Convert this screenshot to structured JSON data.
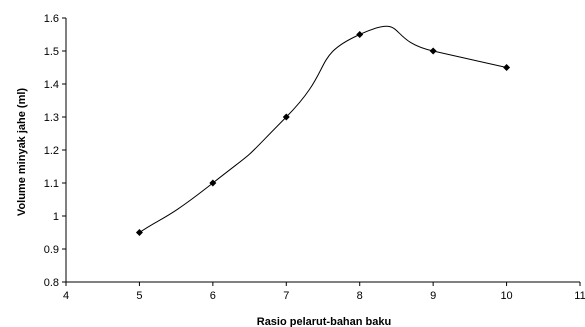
{
  "chart_data": {
    "type": "scatter",
    "title": "",
    "xlabel": "Rasio pelarut-bahan baku",
    "ylabel": "Volume minyak jahe (ml)",
    "xlim": [
      4,
      11
    ],
    "ylim": [
      0.8,
      1.6
    ],
    "xticks": [
      4,
      5,
      6,
      7,
      8,
      9,
      10,
      11
    ],
    "yticks": [
      0.8,
      0.9,
      1.0,
      1.1,
      1.2,
      1.3,
      1.4,
      1.5,
      1.6
    ],
    "xtick_labels": [
      "4",
      "5",
      "6",
      "7",
      "8",
      "9",
      "10",
      "11"
    ],
    "ytick_labels": [
      "0.8",
      "0.9",
      "1",
      "1.1",
      "1.2",
      "1.3",
      "1.4",
      "1.5",
      "1.6"
    ],
    "grid": false,
    "legend": "none",
    "marker": "diamond",
    "line_style": "smooth",
    "color": "#000000",
    "series": [
      {
        "x": [
          5,
          6,
          7,
          8,
          9,
          10
        ],
        "y": [
          0.95,
          1.1,
          1.3,
          1.55,
          1.5,
          1.45
        ]
      }
    ]
  }
}
